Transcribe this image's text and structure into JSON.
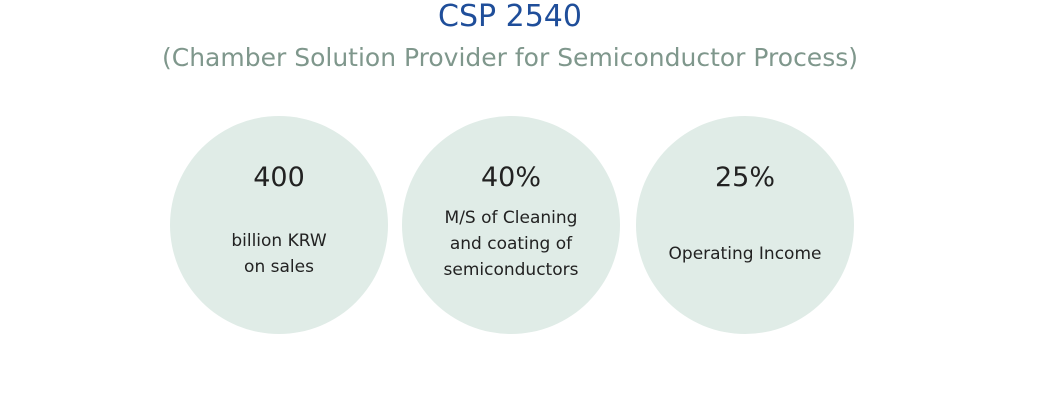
{
  "header": {
    "title": "CSP 2540",
    "subtitle": "(Chamber Solution Provider for Semiconductor Process)"
  },
  "stats": [
    {
      "value": "400",
      "lines": [
        "billion KRW",
        "on sales"
      ]
    },
    {
      "value": "40%",
      "lines": [
        "M/S of Cleaning",
        "and coating of",
        "semiconductors"
      ]
    },
    {
      "value": "25%",
      "lines": [
        "Operating Income"
      ]
    }
  ]
}
